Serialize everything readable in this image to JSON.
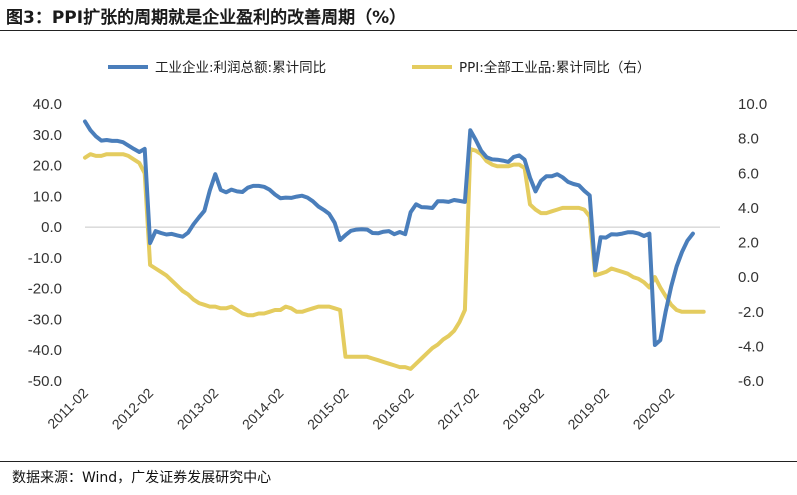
{
  "title": "图3：PPI扩张的周期就是企业盈利的改善周期（%）",
  "source": "数据来源：Wind，广发证券发展研究中心",
  "chart_data": {
    "type": "line",
    "title": "图3：PPI扩张的周期就是企业盈利的改善周期（%）",
    "x_ticks": [
      "2011-02",
      "2012-02",
      "2013-02",
      "2014-02",
      "2015-02",
      "2016-02",
      "2017-02",
      "2018-02",
      "2019-02",
      "2020-02"
    ],
    "x_range": [
      "2011-02",
      "2020-11"
    ],
    "y_left": {
      "ticks": [
        "40.0",
        "30.0",
        "20.0",
        "10.0",
        "0.0",
        "-10.0",
        "-20.0",
        "-30.0",
        "-40.0",
        "-50.0"
      ],
      "range": [
        -50,
        40
      ]
    },
    "y_right": {
      "ticks": [
        "10.0",
        "8.0",
        "6.0",
        "4.0",
        "2.0",
        "0.0",
        "-2.0",
        "-4.0",
        "-6.0"
      ],
      "range": [
        -6,
        10
      ]
    },
    "legend_position": "top",
    "grid": false,
    "series": [
      {
        "name": "工业企业:利润总额:累计同比",
        "axis": "left",
        "color": "#4a7ebb",
        "start": "2011-02",
        "values": [
          34.3,
          31.5,
          29.5,
          28.1,
          28.3,
          28.0,
          28.0,
          27.6,
          26.5,
          25.4,
          24.4,
          25.4,
          -5.2,
          -1.3,
          -1.9,
          -2.4,
          -2.2,
          -2.7,
          -3.1,
          -1.8,
          0.9,
          3.2,
          5.3,
          11.9,
          17.2,
          12.1,
          11.3,
          12.2,
          11.6,
          11.4,
          12.8,
          13.4,
          13.4,
          13.1,
          12.2,
          10.6,
          9.4,
          9.6,
          9.5,
          9.9,
          10.2,
          9.6,
          8.4,
          6.7,
          5.6,
          4.3,
          1.4,
          -4.2,
          -2.6,
          -1.2,
          -0.8,
          -0.7,
          -0.8,
          -1.9,
          -2.0,
          -1.5,
          -1.3,
          -2.3,
          -1.6,
          -2.3,
          4.8,
          7.4,
          6.5,
          6.4,
          6.2,
          8.4,
          8.4,
          8.2,
          8.8,
          8.5,
          8.2,
          31.5,
          28.3,
          24.8,
          22.7,
          22.0,
          21.9,
          21.6,
          21.2,
          22.8,
          23.3,
          21.9,
          16.1,
          11.6,
          15.0,
          16.5,
          16.5,
          17.2,
          16.2,
          14.7,
          14.0,
          13.6,
          11.8,
          10.3,
          -14.0,
          -3.3,
          -3.4,
          -2.3,
          -2.4,
          -2.1,
          -1.7,
          -1.7,
          -2.1,
          -2.9,
          -2.1,
          -38.3,
          -36.7,
          -27.4,
          -19.3,
          -12.8,
          -8.1,
          -4.4,
          -2.1
        ],
        "estimated": true
      },
      {
        "name": "PPI:全部工业品:累计同比（右）",
        "axis": "right",
        "color": "#e4cc5f",
        "start": "2011-02",
        "values": [
          6.9,
          7.1,
          7.0,
          7.0,
          7.1,
          7.1,
          7.1,
          7.1,
          7.0,
          6.8,
          6.6,
          6.0,
          0.7,
          0.5,
          0.3,
          0.1,
          -0.2,
          -0.5,
          -0.8,
          -1.0,
          -1.3,
          -1.5,
          -1.6,
          -1.7,
          -1.7,
          -1.8,
          -1.8,
          -1.7,
          -1.9,
          -2.1,
          -2.2,
          -2.2,
          -2.1,
          -2.1,
          -2.0,
          -1.9,
          -1.9,
          -1.7,
          -1.8,
          -2.0,
          -2.0,
          -1.9,
          -1.8,
          -1.7,
          -1.7,
          -1.7,
          -1.8,
          -1.9,
          -4.6,
          -4.6,
          -4.6,
          -4.6,
          -4.6,
          -4.7,
          -4.8,
          -4.9,
          -5.0,
          -5.1,
          -5.2,
          -5.2,
          -5.3,
          -5.0,
          -4.7,
          -4.4,
          -4.1,
          -3.9,
          -3.6,
          -3.4,
          -3.1,
          -2.6,
          -1.9,
          7.4,
          7.3,
          7.1,
          6.7,
          6.5,
          6.4,
          6.4,
          6.4,
          6.5,
          6.5,
          6.3,
          4.2,
          3.9,
          3.7,
          3.7,
          3.8,
          3.9,
          4.0,
          4.0,
          4.0,
          4.0,
          3.9,
          3.5,
          0.1,
          0.2,
          0.3,
          0.5,
          0.4,
          0.3,
          0.2,
          0.0,
          -0.1,
          -0.3,
          -0.6,
          0.0,
          -0.6,
          -1.1,
          -1.6,
          -1.9,
          -2.0,
          -2.0,
          -2.0,
          -2.0,
          -2.0
        ],
        "estimated": true
      }
    ]
  }
}
